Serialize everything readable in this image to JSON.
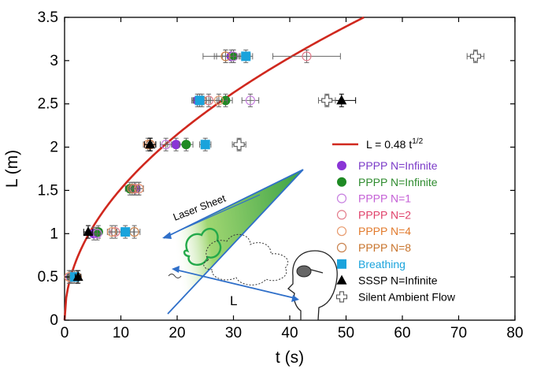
{
  "chart_data": {
    "type": "scatter",
    "xlabel": "t (s)",
    "ylabel": "L (m)",
    "xlim": [
      0,
      80
    ],
    "ylim": [
      0,
      3.5
    ],
    "x_ticks": [
      0,
      10,
      20,
      30,
      40,
      50,
      60,
      70,
      80
    ],
    "y_ticks": [
      0,
      0.5,
      1,
      1.5,
      2,
      2.5,
      3,
      3.5
    ],
    "legend_position": "right",
    "fit": {
      "label": "L = 0.48 t",
      "exponent_label": "1/2",
      "coefficient": 0.48,
      "power": 0.5,
      "color": "#d0281e"
    },
    "series": [
      {
        "name": "PPPP N=Infinite",
        "marker": "circle-filled",
        "color": "#8a35d6",
        "label_color": "#7b3bc8",
        "points": [
          [
            1.2,
            0.5
          ],
          [
            5.2,
            1.0
          ],
          [
            12.6,
            1.52
          ],
          [
            19.8,
            2.03
          ],
          [
            23.6,
            2.54
          ],
          [
            29.6,
            3.05
          ]
        ],
        "xerr": [
          0.4,
          0.6,
          0.8,
          1.5,
          1.0,
          1.6
        ]
      },
      {
        "name": "PPPP N=Infinite",
        "marker": "circle-filled",
        "color": "#1f8a24",
        "label_color": "#2e8b2e",
        "points": [
          [
            1.2,
            0.5
          ],
          [
            6.0,
            1.02
          ],
          [
            11.6,
            1.52
          ],
          [
            21.6,
            2.03
          ],
          [
            28.6,
            2.54
          ],
          [
            30.0,
            3.05
          ]
        ],
        "xerr": [
          0.4,
          0.6,
          0.8,
          1.2,
          1.2,
          2.0
        ]
      },
      {
        "name": "PPPP N=1",
        "marker": "circle-open",
        "color": "#c77ee0",
        "label_color": "#c45fd6",
        "points": [
          [
            1.0,
            0.5
          ],
          [
            5.8,
            1.0
          ],
          [
            13.2,
            1.52
          ],
          [
            18.0,
            2.03
          ],
          [
            33.0,
            2.54
          ],
          [
            30.0,
            3.05
          ]
        ],
        "xerr": [
          0.3,
          0.5,
          0.8,
          1.0,
          1.5,
          3.0
        ]
      },
      {
        "name": "PPPP N=2",
        "marker": "circle-open",
        "color": "#e37b8a",
        "label_color": "#e0406a",
        "points": [
          [
            1.5,
            0.5
          ],
          [
            9.0,
            1.02
          ],
          [
            12.4,
            1.52
          ],
          [
            15.2,
            2.03
          ],
          [
            25.6,
            2.54
          ],
          [
            43.0,
            3.05
          ]
        ],
        "xerr": [
          0.4,
          1.0,
          0.8,
          1.0,
          1.5,
          6.0
        ]
      },
      {
        "name": "PPPP N=4",
        "marker": "circle-open",
        "color": "#e89b6e",
        "label_color": "#e27a2c",
        "points": [
          [
            0.8,
            0.5
          ],
          [
            8.4,
            1.02
          ],
          [
            13.2,
            1.52
          ],
          [
            14.8,
            2.03
          ],
          [
            27.4,
            2.54
          ],
          [
            28.6,
            3.05
          ]
        ],
        "xerr": [
          0.3,
          0.8,
          0.8,
          0.8,
          1.5,
          4.0
        ]
      },
      {
        "name": "PPPP N=8",
        "marker": "circle-open",
        "color": "#c9824d",
        "label_color": "#c8742c",
        "points": [
          [
            2.2,
            0.5
          ],
          [
            12.4,
            1.02
          ],
          [
            12.0,
            1.52
          ],
          [
            15.2,
            2.03
          ],
          [
            24.4,
            2.54
          ],
          [
            28.6,
            3.05
          ]
        ],
        "xerr": [
          0.4,
          1.0,
          0.8,
          1.0,
          1.5,
          2.0
        ]
      },
      {
        "name": "Breathing",
        "marker": "square-filled",
        "color": "#1aa3dc",
        "label_color": "#1aa3dc",
        "points": [
          [
            1.8,
            0.5
          ],
          [
            10.8,
            1.02
          ],
          [
            25.0,
            2.03
          ],
          [
            24.0,
            2.54
          ],
          [
            32.2,
            3.05
          ]
        ],
        "xerr": [
          0.6,
          1.5,
          1.0,
          1.2,
          1.2
        ]
      },
      {
        "name": "SSSP N=Infinite",
        "marker": "triangle-filled",
        "color": "#000000",
        "label_color": "#000000",
        "points": [
          [
            2.4,
            0.5
          ],
          [
            4.2,
            1.02
          ],
          [
            15.2,
            2.03
          ],
          [
            49.2,
            2.54
          ]
        ],
        "xerr": [
          0.5,
          0.8,
          1.0,
          2.5
        ]
      },
      {
        "name": "Silent Ambient Flow",
        "marker": "cross-open",
        "color": "#555555",
        "label_color": "#000000",
        "points": [
          [
            31.0,
            2.03
          ],
          [
            46.6,
            2.54
          ],
          [
            73.0,
            3.05
          ]
        ],
        "xerr": [
          1.2,
          1.5,
          1.5
        ]
      }
    ]
  },
  "annotations": {
    "laser_sheet": "Laser Sheet",
    "distance": "L"
  }
}
